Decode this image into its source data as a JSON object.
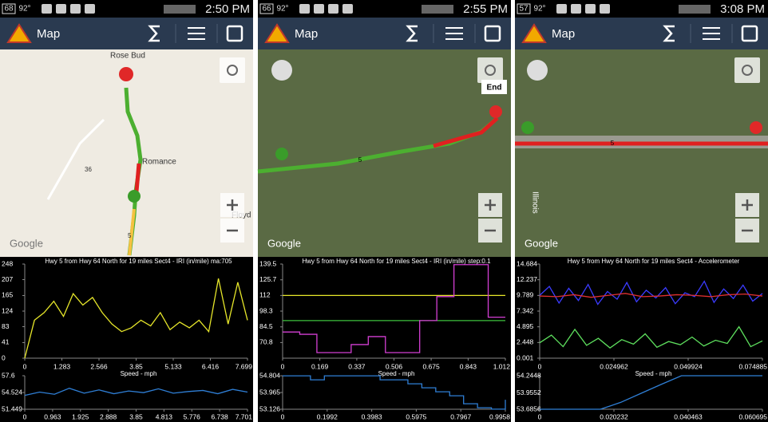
{
  "panels": [
    {
      "status": {
        "left": [
          "68",
          "92°"
        ],
        "time": "2:50 PM"
      },
      "app_title": "Map",
      "map": {
        "labels": [
          "Rose Bud",
          "Romance",
          "Floyd",
          "36",
          "5"
        ],
        "watermark": "Google"
      },
      "charts": [
        {
          "title": "Hwy 5 from Hwy 64 North for 19 miles Sect4 - IRI (in/mile) ma:705",
          "ylim": [
            0,
            248
          ],
          "yticks": [
            248,
            207,
            165,
            124,
            83,
            41,
            0
          ],
          "xlim": [
            0,
            7.699
          ],
          "xticks": [
            0,
            1.283,
            2.566,
            3.85,
            5.133,
            6.416,
            7.699
          ],
          "series": [
            {
              "color": "#e6e62a",
              "values": [
                0,
                100,
                120,
                150,
                110,
                170,
                140,
                160,
                120,
                90,
                70,
                80,
                100,
                85,
                120,
                75,
                95,
                80,
                100,
                70,
                210,
                90,
                200,
                100
              ]
            }
          ]
        },
        {
          "title": "Speed - mph",
          "ylim": [
            51.449,
            57.6
          ],
          "yticks": [
            57.6,
            54.524,
            51.449
          ],
          "xlim": [
            0,
            7.701
          ],
          "xticks": [
            0,
            0.963,
            1.925,
            2.888,
            3.85,
            4.813,
            5.776,
            6.738,
            7.701
          ],
          "series": [
            {
              "color": "#2f7fd6",
              "values": [
                54.0,
                54.6,
                54.2,
                55.3,
                54.4,
                55.0,
                54.3,
                54.8,
                54.5,
                55.2,
                54.4,
                54.7,
                54.9,
                54.3,
                55.1,
                54.6
              ]
            }
          ]
        }
      ]
    },
    {
      "status": {
        "left": [
          "66",
          "92°"
        ],
        "time": "2:55 PM"
      },
      "app_title": "Map",
      "map": {
        "labels": [
          "End",
          "5"
        ],
        "watermark": "Google"
      },
      "charts": [
        {
          "title": "Hwy 5 from Hwy 64 North for 19 miles Sect4 - IRI (in/mile) step:0.1",
          "ylim": [
            57.1,
            139.5
          ],
          "yticks": [
            139.5,
            125.7,
            112,
            98.3,
            84.5,
            70.8
          ],
          "xlim": [
            0,
            1.012
          ],
          "xticks": [
            0,
            0.169,
            0.337,
            0.506,
            0.675,
            0.843,
            1.012
          ],
          "step": true,
          "series": [
            {
              "color": "#e6e62a",
              "values": [
                112,
                112
              ]
            },
            {
              "color": "#3ec23e",
              "values": [
                90,
                90
              ]
            },
            {
              "color": "#d43fd4",
              "values": [
                80,
                78,
                62,
                62,
                69,
                76,
                62,
                62,
                90,
                111,
                139,
                139,
                93,
                93
              ]
            }
          ]
        },
        {
          "title": "Speed - mph",
          "ylim": [
            53.126,
            54.804
          ],
          "yticks": [
            54.804,
            53.965,
            53.126
          ],
          "xlim": [
            0,
            0.9958
          ],
          "xticks": [
            0,
            0.1992,
            0.3983,
            0.5975,
            0.7967,
            0.9958
          ],
          "step": true,
          "series": [
            {
              "color": "#2f7fd6",
              "values": [
                54.8,
                54.8,
                54.6,
                54.8,
                54.8,
                54.8,
                54.8,
                54.6,
                54.6,
                54.4,
                54.2,
                54.0,
                53.8,
                53.4,
                53.2,
                53.13,
                53.6
              ]
            }
          ]
        }
      ]
    },
    {
      "status": {
        "left": [
          "57",
          "92°"
        ],
        "time": "3:08 PM"
      },
      "app_title": "Map",
      "map": {
        "labels": [
          "Illinois",
          "5"
        ],
        "watermark": "Google"
      },
      "charts": [
        {
          "title": "Hwy 5 from Hwy 64 North for 19 miles Sect4 - Accelerometer",
          "ylim": [
            0.001,
            14.684
          ],
          "yticks": [
            14.684,
            12.237,
            9.789,
            7.342,
            4.895,
            2.448,
            0.001
          ],
          "xlim": [
            0,
            0.074885
          ],
          "xticks": [
            0,
            0.024962,
            0.049924,
            0.074885
          ],
          "series": [
            {
              "color": "#3b3bff",
              "values": [
                9.8,
                11.2,
                8.6,
                10.9,
                9.0,
                11.5,
                8.4,
                10.4,
                9.2,
                11.8,
                8.8,
                10.6,
                9.4,
                11.0,
                8.5,
                10.2,
                9.6,
                12.0,
                8.7,
                10.8,
                9.3,
                11.4,
                8.9,
                10.1
              ]
            },
            {
              "color": "#5ee05e",
              "values": [
                2.4,
                3.6,
                1.8,
                4.5,
                2.0,
                3.1,
                1.6,
                2.9,
                2.2,
                3.8,
                1.7,
                2.6,
                2.1,
                3.3,
                1.9,
                2.8,
                2.3,
                4.9,
                1.8,
                2.7
              ]
            },
            {
              "color": "#e03030",
              "values": [
                9.7,
                9.6,
                9.9,
                9.5,
                9.8,
                10.1,
                9.6,
                9.7,
                9.9,
                9.8,
                9.6,
                9.9,
                10.0,
                9.7
              ]
            }
          ]
        },
        {
          "title": "Speed - mph",
          "ylim": [
            53.6856,
            54.2448
          ],
          "yticks": [
            54.2448,
            53.9552,
            53.6856
          ],
          "xlim": [
            0,
            0.060695
          ],
          "xticks": [
            0,
            0.020232,
            0.040463,
            0.060695
          ],
          "series": [
            {
              "color": "#2f7fd6",
              "values": [
                53.6856,
                53.6856,
                53.6856,
                53.6856,
                53.8,
                53.95,
                54.1,
                54.2448,
                54.2448,
                54.2448,
                54.2448,
                54.2448
              ]
            }
          ]
        }
      ]
    }
  ]
}
